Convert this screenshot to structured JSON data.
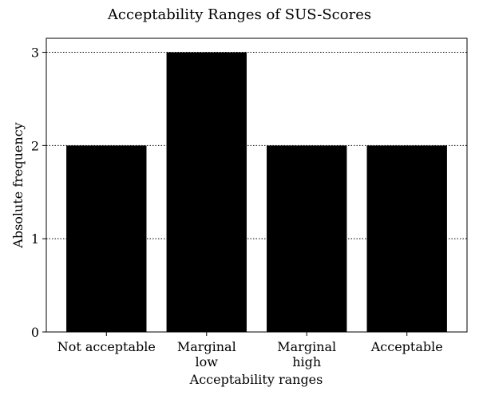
{
  "chart_data": {
    "type": "bar",
    "title": "Acceptability Ranges of SUS-Scores",
    "xlabel": "Acceptability ranges",
    "ylabel": "Absolute frequency",
    "categories": [
      [
        "Not acceptable"
      ],
      [
        "Marginal",
        "low"
      ],
      [
        "Marginal",
        "high"
      ],
      [
        "Acceptable"
      ]
    ],
    "values": [
      2,
      3,
      2,
      2
    ],
    "ylim": [
      0,
      3.15
    ],
    "yticks": [
      0,
      1,
      2,
      3
    ],
    "grid": "y-dotted",
    "bar_color": "#000000",
    "grid_color": "#000000"
  }
}
